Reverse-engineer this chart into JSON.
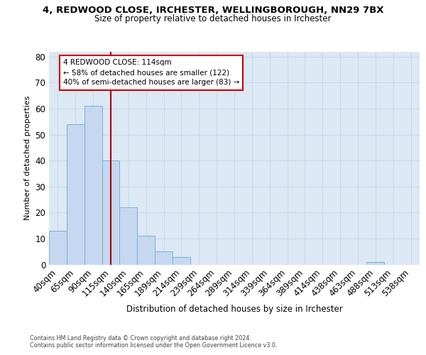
{
  "title_line1": "4, REDWOOD CLOSE, IRCHESTER, WELLINGBOROUGH, NN29 7BX",
  "title_line2": "Size of property relative to detached houses in Irchester",
  "xlabel": "Distribution of detached houses by size in Irchester",
  "ylabel": "Number of detached properties",
  "bar_labels": [
    "40sqm",
    "65sqm",
    "90sqm",
    "115sqm",
    "140sqm",
    "165sqm",
    "189sqm",
    "214sqm",
    "239sqm",
    "264sqm",
    "289sqm",
    "314sqm",
    "339sqm",
    "364sqm",
    "389sqm",
    "414sqm",
    "438sqm",
    "463sqm",
    "488sqm",
    "513sqm",
    "538sqm"
  ],
  "bar_values": [
    13,
    54,
    61,
    40,
    22,
    11,
    5,
    3,
    0,
    0,
    0,
    0,
    0,
    0,
    0,
    0,
    0,
    0,
    1,
    0,
    0
  ],
  "bar_color": "#c5d8f0",
  "bar_edge_color": "#7aafd4",
  "vline_x": 3.0,
  "vline_color": "#aa0000",
  "ylim_max": 82,
  "yticks": [
    0,
    10,
    20,
    30,
    40,
    50,
    60,
    70,
    80
  ],
  "annotation_line1": "4 REDWOOD CLOSE: 114sqm",
  "annotation_line2": "← 58% of detached houses are smaller (122)",
  "annotation_line3": "40% of semi-detached houses are larger (83) →",
  "annotation_box_edge": "#cc0000",
  "grid_color": "#c8d8ec",
  "background_color": "#dde8f5",
  "footnote_line1": "Contains HM Land Registry data © Crown copyright and database right 2024.",
  "footnote_line2": "Contains public sector information licensed under the Open Government Licence v3.0."
}
